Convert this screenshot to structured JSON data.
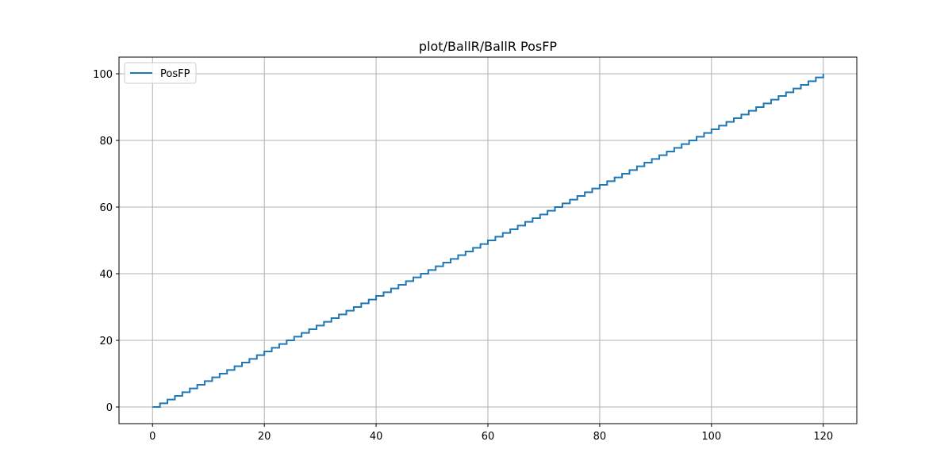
{
  "chart_data": {
    "type": "line",
    "title": "plot/BallR/BallR PosFP",
    "xlabel": "",
    "ylabel": "",
    "xlim": [
      -6,
      126
    ],
    "ylim": [
      -5,
      105
    ],
    "xticks": [
      0,
      20,
      40,
      60,
      80,
      100,
      120
    ],
    "yticks": [
      0,
      20,
      40,
      60,
      80,
      100
    ],
    "grid": true,
    "legend_position": "upper-left",
    "line_color": "#1f77b4",
    "series": [
      {
        "name": "PosFP",
        "step": "post",
        "x": [
          0,
          1.333,
          2.667,
          4,
          5.333,
          6.667,
          8,
          9.333,
          10.667,
          12,
          13.333,
          14.667,
          16,
          17.333,
          18.667,
          20,
          21.333,
          22.667,
          24,
          25.333,
          26.667,
          28,
          29.333,
          30.667,
          32,
          33.333,
          34.667,
          36,
          37.333,
          38.667,
          40,
          41.333,
          42.667,
          44,
          45.333,
          46.667,
          48,
          49.333,
          50.667,
          52,
          53.333,
          54.667,
          56,
          57.333,
          58.667,
          60,
          61.333,
          62.667,
          64,
          65.333,
          66.667,
          68,
          69.333,
          70.667,
          72,
          73.333,
          74.667,
          76,
          77.333,
          78.667,
          80,
          81.333,
          82.667,
          84,
          85.333,
          86.667,
          88,
          89.333,
          90.667,
          92,
          93.333,
          94.667,
          96,
          97.333,
          98.667,
          100,
          101.333,
          102.667,
          104,
          105.333,
          106.667,
          108,
          109.333,
          110.667,
          112,
          113.333,
          114.667,
          116,
          117.333,
          118.667,
          120
        ],
        "y": [
          0,
          1.111,
          2.222,
          3.333,
          4.444,
          5.556,
          6.667,
          7.778,
          8.889,
          10,
          11.111,
          12.222,
          13.333,
          14.444,
          15.556,
          16.667,
          17.778,
          18.889,
          20,
          21.111,
          22.222,
          23.333,
          24.444,
          25.556,
          26.667,
          27.778,
          28.889,
          30,
          31.111,
          32.222,
          33.333,
          34.444,
          35.556,
          36.667,
          37.778,
          38.889,
          40,
          41.111,
          42.222,
          43.333,
          44.444,
          45.556,
          46.667,
          47.778,
          48.889,
          50,
          51.111,
          52.222,
          53.333,
          54.444,
          55.556,
          56.667,
          57.778,
          58.889,
          60,
          61.111,
          62.222,
          63.333,
          64.444,
          65.556,
          66.667,
          67.778,
          68.889,
          70,
          71.111,
          72.222,
          73.333,
          74.444,
          75.556,
          76.667,
          77.778,
          78.889,
          80,
          81.111,
          82.222,
          83.333,
          84.444,
          85.556,
          86.667,
          87.778,
          88.889,
          90,
          91.111,
          92.222,
          93.333,
          94.444,
          95.556,
          96.667,
          97.778,
          98.889,
          100
        ]
      }
    ]
  }
}
